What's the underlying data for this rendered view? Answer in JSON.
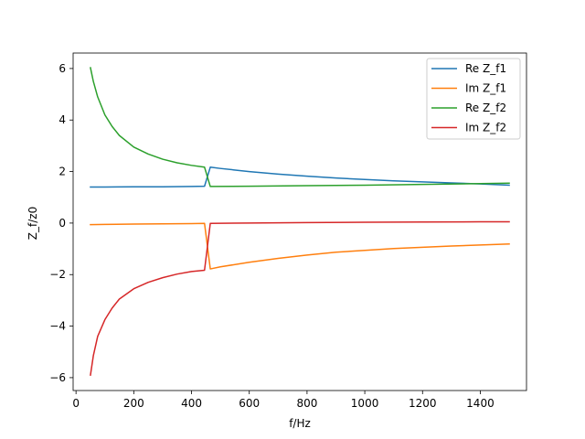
{
  "chart_data": {
    "type": "line",
    "xlabel": "f/Hz",
    "ylabel": "Z_f/z0",
    "xlim": [
      -10,
      1560
    ],
    "ylim": [
      -6.5,
      6.6
    ],
    "xticks": [
      0,
      200,
      400,
      600,
      800,
      1000,
      1200,
      1400
    ],
    "yticks": [
      -6,
      -4,
      -2,
      0,
      2,
      4,
      6
    ],
    "grid": false,
    "legend_position": "top-right",
    "series": [
      {
        "name": "Re Z_f1",
        "color": "#1f77b4",
        "x": [
          50,
          100,
          200,
          300,
          400,
          445,
          465,
          500,
          600,
          700,
          800,
          900,
          1000,
          1100,
          1200,
          1300,
          1400,
          1500
        ],
        "y": [
          1.4,
          1.4,
          1.41,
          1.41,
          1.42,
          1.43,
          2.17,
          2.12,
          2.0,
          1.9,
          1.82,
          1.75,
          1.69,
          1.64,
          1.6,
          1.56,
          1.52,
          1.47
        ]
      },
      {
        "name": "Im Z_f1",
        "color": "#ff7f0e",
        "x": [
          50,
          100,
          200,
          300,
          400,
          445,
          465,
          500,
          600,
          700,
          800,
          900,
          1000,
          1100,
          1200,
          1300,
          1400,
          1500
        ],
        "y": [
          -0.06,
          -0.05,
          -0.04,
          -0.03,
          -0.02,
          -0.01,
          -1.78,
          -1.7,
          -1.52,
          -1.37,
          -1.24,
          -1.13,
          -1.06,
          -0.99,
          -0.94,
          -0.89,
          -0.85,
          -0.81
        ]
      },
      {
        "name": "Re Z_f2",
        "color": "#2ca02c",
        "x": [
          50,
          60,
          75,
          100,
          125,
          150,
          200,
          250,
          300,
          350,
          400,
          445,
          465,
          600,
          800,
          1000,
          1200,
          1400,
          1500
        ],
        "y": [
          6.03,
          5.5,
          4.9,
          4.2,
          3.75,
          3.4,
          2.95,
          2.68,
          2.48,
          2.34,
          2.24,
          2.17,
          1.42,
          1.43,
          1.45,
          1.47,
          1.5,
          1.53,
          1.55
        ]
      },
      {
        "name": "Im Z_f2",
        "color": "#d62728",
        "x": [
          50,
          60,
          75,
          100,
          125,
          150,
          200,
          250,
          300,
          350,
          400,
          445,
          465,
          600,
          800,
          1000,
          1200,
          1400,
          1500
        ],
        "y": [
          -5.9,
          -5.15,
          -4.4,
          -3.75,
          -3.3,
          -2.95,
          -2.55,
          -2.3,
          -2.12,
          -1.98,
          -1.88,
          -1.83,
          -0.01,
          0.0,
          0.02,
          0.03,
          0.04,
          0.05,
          0.05
        ]
      }
    ]
  }
}
